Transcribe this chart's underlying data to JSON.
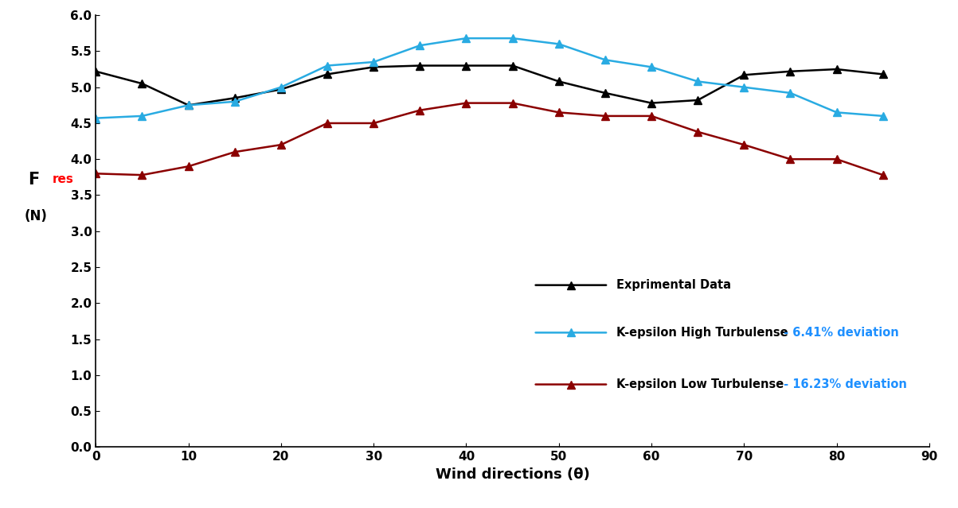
{
  "x": [
    0,
    5,
    10,
    15,
    20,
    25,
    30,
    35,
    40,
    45,
    50,
    55,
    60,
    65,
    70,
    75,
    80,
    85
  ],
  "experimental": [
    5.22,
    5.05,
    4.75,
    4.85,
    4.97,
    5.18,
    5.28,
    5.3,
    5.3,
    5.3,
    5.08,
    4.92,
    4.78,
    4.82,
    5.17,
    5.22,
    5.25,
    5.18
  ],
  "k_high": [
    4.57,
    4.6,
    4.75,
    4.8,
    5.0,
    5.3,
    5.35,
    5.58,
    5.68,
    5.68,
    5.6,
    5.38,
    5.28,
    5.08,
    5.0,
    4.92,
    4.65,
    4.6
  ],
  "k_low": [
    3.8,
    3.78,
    3.9,
    4.1,
    4.2,
    4.5,
    4.5,
    4.68,
    4.78,
    4.78,
    4.65,
    4.6,
    4.6,
    4.38,
    4.2,
    4.0,
    4.0,
    3.78
  ],
  "experimental_color": "#000000",
  "k_high_color": "#29ABE2",
  "k_low_color": "#8B0000",
  "xlabel": "Wind directions (θ)",
  "ylabel_F": "F",
  "ylabel_res": "res",
  "ylabel_N": "(N)",
  "xlim": [
    0,
    90
  ],
  "ylim": [
    0.0,
    6.0
  ],
  "yticks": [
    0.0,
    0.5,
    1.0,
    1.5,
    2.0,
    2.5,
    3.0,
    3.5,
    4.0,
    4.5,
    5.0,
    5.5,
    6.0
  ],
  "xticks": [
    0,
    10,
    20,
    30,
    40,
    50,
    60,
    70,
    80,
    90
  ],
  "legend_exp": "Exprimental Data",
  "legend_high": "K-epsilon High Turbulense",
  "legend_low": "K-epsilon Low Turbulense",
  "deviation_high": " - 6.41% deviation",
  "deviation_low": " - 16.23% deviation",
  "deviation_color": "#1E90FF",
  "background_color": "#ffffff",
  "marker": "^",
  "linewidth": 1.8,
  "markersize": 7
}
